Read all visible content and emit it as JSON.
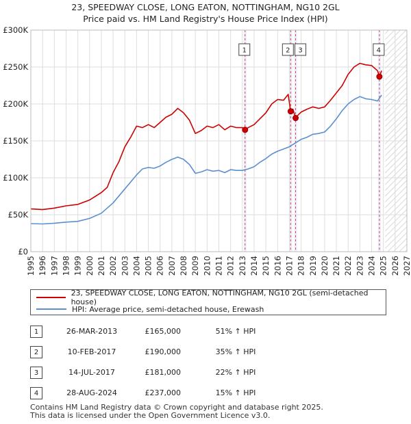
{
  "title_line1": "23, SPEEDWAY CLOSE, LONG EATON, NOTTINGHAM, NG10 2GL",
  "title_line2": "Price paid vs. HM Land Registry's House Price Index (HPI)",
  "colors": {
    "property": "#cc0000",
    "hpi": "#5b8fd0",
    "marker_line": "#dd4444",
    "marker_shade": "#e8eefb",
    "grid": "#dddddd"
  },
  "chart_data": {
    "type": "line",
    "x_range": [
      1995,
      2027
    ],
    "ylim": [
      0,
      300000
    ],
    "y_ticks": [
      {
        "value": 0,
        "label": "£0"
      },
      {
        "value": 50000,
        "label": "£50K"
      },
      {
        "value": 100000,
        "label": "£100K"
      },
      {
        "value": 150000,
        "label": "£150K"
      },
      {
        "value": 200000,
        "label": "£200K"
      },
      {
        "value": 250000,
        "label": "£250K"
      },
      {
        "value": 300000,
        "label": "£300K"
      }
    ],
    "x_ticks": [
      "1995",
      "1996",
      "1997",
      "1998",
      "1999",
      "2000",
      "2001",
      "2002",
      "2003",
      "2004",
      "2005",
      "2006",
      "2007",
      "2008",
      "2009",
      "2010",
      "2011",
      "2012",
      "2013",
      "2014",
      "2015",
      "2016",
      "2017",
      "2018",
      "2019",
      "2020",
      "2021",
      "2022",
      "2023",
      "2024",
      "2025",
      "2026",
      "2027"
    ],
    "data_end": 2025.0,
    "series": [
      {
        "name": "23, SPEEDWAY CLOSE, LONG EATON, NOTTINGHAM, NG10 2GL (semi-detached house)",
        "color": "#cc0000",
        "points": [
          [
            1995.0,
            58000
          ],
          [
            1996.0,
            57000
          ],
          [
            1997.0,
            59000
          ],
          [
            1998.0,
            62000
          ],
          [
            1999.0,
            64000
          ],
          [
            2000.0,
            70000
          ],
          [
            2001.0,
            80000
          ],
          [
            2001.5,
            87000
          ],
          [
            2002.0,
            107000
          ],
          [
            2002.5,
            122000
          ],
          [
            2003.0,
            142000
          ],
          [
            2003.5,
            155000
          ],
          [
            2004.0,
            170000
          ],
          [
            2004.5,
            168000
          ],
          [
            2005.0,
            172000
          ],
          [
            2005.5,
            168000
          ],
          [
            2006.0,
            175000
          ],
          [
            2006.5,
            182000
          ],
          [
            2007.0,
            186000
          ],
          [
            2007.5,
            194000
          ],
          [
            2008.0,
            188000
          ],
          [
            2008.5,
            178000
          ],
          [
            2009.0,
            160000
          ],
          [
            2009.5,
            164000
          ],
          [
            2010.0,
            170000
          ],
          [
            2010.5,
            168000
          ],
          [
            2011.0,
            172000
          ],
          [
            2011.5,
            165000
          ],
          [
            2012.0,
            170000
          ],
          [
            2012.5,
            168000
          ],
          [
            2013.0,
            168000
          ],
          [
            2013.23,
            165000
          ],
          [
            2013.5,
            168000
          ],
          [
            2014.0,
            172000
          ],
          [
            2014.5,
            180000
          ],
          [
            2015.0,
            188000
          ],
          [
            2015.5,
            200000
          ],
          [
            2016.0,
            206000
          ],
          [
            2016.5,
            205000
          ],
          [
            2016.9,
            213000
          ],
          [
            2017.11,
            190000
          ],
          [
            2017.3,
            193000
          ],
          [
            2017.53,
            181000
          ],
          [
            2017.8,
            186000
          ],
          [
            2018.0,
            189000
          ],
          [
            2018.5,
            193000
          ],
          [
            2019.0,
            196000
          ],
          [
            2019.5,
            194000
          ],
          [
            2020.0,
            196000
          ],
          [
            2020.5,
            205000
          ],
          [
            2021.0,
            215000
          ],
          [
            2021.5,
            225000
          ],
          [
            2022.0,
            240000
          ],
          [
            2022.5,
            250000
          ],
          [
            2023.0,
            255000
          ],
          [
            2023.5,
            253000
          ],
          [
            2024.0,
            252000
          ],
          [
            2024.5,
            245000
          ],
          [
            2024.66,
            237000
          ],
          [
            2024.85,
            245000
          ]
        ]
      },
      {
        "name": "HPI: Average price, semi-detached house, Erewash",
        "color": "#5b8fd0",
        "points": [
          [
            1995.0,
            38000
          ],
          [
            1996.0,
            37500
          ],
          [
            1997.0,
            38500
          ],
          [
            1998.0,
            40000
          ],
          [
            1999.0,
            41000
          ],
          [
            2000.0,
            45000
          ],
          [
            2001.0,
            52000
          ],
          [
            2002.0,
            66000
          ],
          [
            2003.0,
            85000
          ],
          [
            2004.0,
            104000
          ],
          [
            2004.5,
            112000
          ],
          [
            2005.0,
            114000
          ],
          [
            2005.5,
            113000
          ],
          [
            2006.0,
            116000
          ],
          [
            2006.5,
            121000
          ],
          [
            2007.0,
            125000
          ],
          [
            2007.5,
            128000
          ],
          [
            2008.0,
            125000
          ],
          [
            2008.5,
            118000
          ],
          [
            2009.0,
            106000
          ],
          [
            2009.5,
            108000
          ],
          [
            2010.0,
            111000
          ],
          [
            2010.5,
            109000
          ],
          [
            2011.0,
            110000
          ],
          [
            2011.5,
            107000
          ],
          [
            2012.0,
            111000
          ],
          [
            2012.5,
            110000
          ],
          [
            2013.0,
            110000
          ],
          [
            2013.5,
            112000
          ],
          [
            2014.0,
            115000
          ],
          [
            2014.5,
            121000
          ],
          [
            2015.0,
            126000
          ],
          [
            2015.5,
            132000
          ],
          [
            2016.0,
            136000
          ],
          [
            2016.5,
            139000
          ],
          [
            2017.0,
            142000
          ],
          [
            2017.5,
            147000
          ],
          [
            2018.0,
            152000
          ],
          [
            2018.5,
            155000
          ],
          [
            2019.0,
            159000
          ],
          [
            2019.5,
            160000
          ],
          [
            2020.0,
            162000
          ],
          [
            2020.5,
            170000
          ],
          [
            2021.0,
            180000
          ],
          [
            2021.5,
            191000
          ],
          [
            2022.0,
            200000
          ],
          [
            2022.5,
            206000
          ],
          [
            2023.0,
            210000
          ],
          [
            2023.5,
            207000
          ],
          [
            2024.0,
            206000
          ],
          [
            2024.5,
            204000
          ],
          [
            2024.85,
            212000
          ]
        ]
      }
    ],
    "markers": [
      {
        "label": "1",
        "x": 2013.23,
        "price": 165000
      },
      {
        "label": "2",
        "x": 2017.11,
        "price": 190000
      },
      {
        "label": "3",
        "x": 2017.53,
        "price": 181000
      },
      {
        "label": "4",
        "x": 2024.66,
        "price": 237000
      }
    ]
  },
  "legend": {
    "property_label": "23, SPEEDWAY CLOSE, LONG EATON, NOTTINGHAM, NG10 2GL (semi-detached house)",
    "hpi_label": "HPI: Average price, semi-detached house, Erewash"
  },
  "transactions": [
    {
      "num": "1",
      "date": "26-MAR-2013",
      "price": "£165,000",
      "hpi": "51% ↑ HPI"
    },
    {
      "num": "2",
      "date": "10-FEB-2017",
      "price": "£190,000",
      "hpi": "35% ↑ HPI"
    },
    {
      "num": "3",
      "date": "14-JUL-2017",
      "price": "£181,000",
      "hpi": "22% ↑ HPI"
    },
    {
      "num": "4",
      "date": "28-AUG-2024",
      "price": "£237,000",
      "hpi": "15% ↑ HPI"
    }
  ],
  "footer": {
    "line1": "Contains HM Land Registry data © Crown copyright and database right 2025.",
    "line2": "This data is licensed under the Open Government Licence v3.0."
  }
}
